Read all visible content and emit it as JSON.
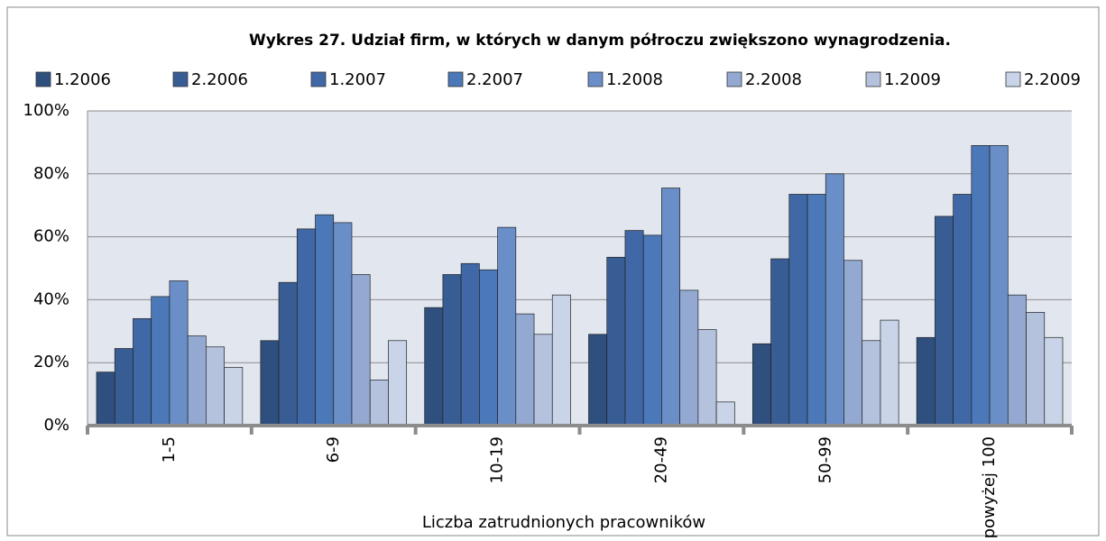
{
  "chart_data": {
    "type": "bar",
    "title": "Wykres 27. Udział firm, w których w danym półroczu zwiększono wynagrodzenia.",
    "x_label": "Liczba zatrudnionych pracowników",
    "categories": [
      "1-5",
      "6-9",
      "10-19",
      "20-49",
      "50-99",
      "powyżej 100"
    ],
    "series": [
      {
        "name": "1.2006",
        "color": "#2f4f7f",
        "values": [
          17,
          27,
          37.5,
          29,
          26,
          28
        ]
      },
      {
        "name": "2.2006",
        "color": "#385d94",
        "values": [
          24.5,
          45.5,
          48,
          53.5,
          53,
          66.5
        ]
      },
      {
        "name": "1.2007",
        "color": "#4068a6",
        "values": [
          34,
          62.5,
          51.5,
          62,
          73.5,
          73.5
        ]
      },
      {
        "name": "2.2007",
        "color": "#4a78b8",
        "values": [
          41,
          67,
          49.5,
          60.5,
          73.5,
          89
        ]
      },
      {
        "name": "1.2008",
        "color": "#6a8fc8",
        "values": [
          46,
          64.5,
          63,
          75.5,
          80,
          89
        ]
      },
      {
        "name": "2.2008",
        "color": "#93a9d1",
        "values": [
          28.5,
          48,
          35.5,
          43,
          52.5,
          41.5
        ]
      },
      {
        "name": "1.2009",
        "color": "#b4c2de",
        "values": [
          25,
          14.5,
          29,
          30.5,
          27,
          36
        ]
      },
      {
        "name": "2.2009",
        "color": "#c9d4e8",
        "values": [
          18.5,
          27,
          41.5,
          7.5,
          33.5,
          28
        ]
      }
    ],
    "ylim": [
      0,
      100
    ],
    "yticks": [
      {
        "value": 0,
        "label": "0%"
      },
      {
        "value": 20,
        "label": "20%"
      },
      {
        "value": 40,
        "label": "40%"
      },
      {
        "value": 60,
        "label": "60%"
      },
      {
        "value": 80,
        "label": "80%"
      },
      {
        "value": 100,
        "label": "100%"
      }
    ],
    "grid": true
  }
}
